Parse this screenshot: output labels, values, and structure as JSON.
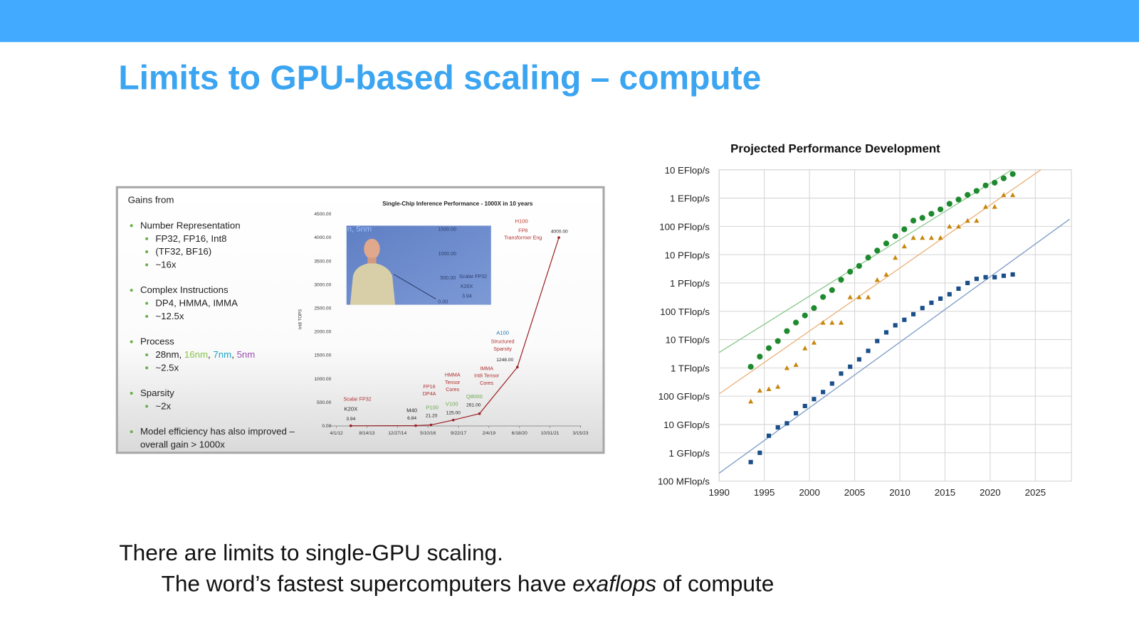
{
  "title": "Limits to GPU-based scaling – compute",
  "left_figure": {
    "heading": "Gains from",
    "bullets": [
      {
        "text": [
          "Number Representation"
        ],
        "subs": [
          {
            "segments": [
              {
                "text": "FP32, FP16, Int8",
                "color": "#222222"
              }
            ]
          },
          {
            "segments": [
              {
                "text": "(TF32, BF16)",
                "color": "#222222"
              }
            ]
          },
          {
            "segments": [
              {
                "text": "~16x",
                "color": "#222222"
              }
            ]
          }
        ]
      },
      {
        "text": [
          "Complex Instructions"
        ],
        "subs": [
          {
            "segments": [
              {
                "text": "DP4, HMMA, IMMA",
                "color": "#222222"
              }
            ]
          },
          {
            "segments": [
              {
                "text": "~12.5x",
                "color": "#222222"
              }
            ]
          }
        ]
      },
      {
        "text": [
          "Process"
        ],
        "subs": [
          {
            "segments": [
              {
                "text": "28nm, ",
                "color": "#222222"
              },
              {
                "text": "16nm",
                "color": "#8bc34a"
              },
              {
                "text": ", ",
                "color": "#222222"
              },
              {
                "text": "7nm",
                "color": "#1aa3c8"
              },
              {
                "text": ", ",
                "color": "#222222"
              },
              {
                "text": "5nm",
                "color": "#9c4fb0"
              }
            ]
          },
          {
            "segments": [
              {
                "text": "~2.5x",
                "color": "#222222"
              }
            ]
          }
        ]
      },
      {
        "text": [
          "Sparsity"
        ],
        "subs": [
          {
            "segments": [
              {
                "text": "~2x",
                "color": "#222222"
              }
            ]
          }
        ]
      },
      {
        "text": [
          "Model efficiency has also improved –",
          "overall gain > 1000x"
        ],
        "subs": []
      }
    ],
    "chart": {
      "type": "line",
      "title": "Single-Chip Inference Performance - 1000X in 10 years",
      "y_label": "Int8 TOPS",
      "color": "#9b2226",
      "xlim": [
        -0.24,
        8.02
      ],
      "ylim": [
        0,
        4500
      ],
      "xticks": [
        {
          "value": 0,
          "label": "4/1/12"
        },
        {
          "value": 1,
          "label": "8/14/13"
        },
        {
          "value": 2,
          "label": "12/27/14"
        },
        {
          "value": 3,
          "label": "5/10/16"
        },
        {
          "value": 4,
          "label": "9/22/17"
        },
        {
          "value": 5,
          "label": "2/4/19"
        },
        {
          "value": 6,
          "label": "6/18/20"
        },
        {
          "value": 7,
          "label": "10/31/21"
        },
        {
          "value": 8,
          "label": "3/15/23"
        }
      ],
      "yticks": [
        {
          "value": 0,
          "label": "0.00"
        },
        {
          "value": 500,
          "label": "500.00"
        },
        {
          "value": 1000,
          "label": "1000.00"
        },
        {
          "value": 1500,
          "label": "1500.00"
        },
        {
          "value": 2000,
          "label": "2000.00"
        },
        {
          "value": 2500,
          "label": "2500.00"
        },
        {
          "value": 3000,
          "label": "3000.00"
        },
        {
          "value": 3500,
          "label": "3500.00"
        },
        {
          "value": 4000,
          "label": "4000.00"
        },
        {
          "value": 4500,
          "label": "4500.00"
        }
      ],
      "points": [
        {
          "gpu": "K20X",
          "gpu_color": "#222222",
          "feature": [
            "Scalar FP32"
          ],
          "x": 0.47,
          "value": 3.94,
          "value_label": "3.94"
        },
        {
          "gpu": "M40",
          "gpu_color": "#222222",
          "feature": [],
          "x": 2.6,
          "value": 6.84,
          "value_label": "6.84"
        },
        {
          "gpu": "P100",
          "gpu_color": "#6aa84f",
          "feature": [
            "FP16",
            "DP4A"
          ],
          "x": 3.1,
          "value": 21.2,
          "value_label": "21.20"
        },
        {
          "gpu": "V100",
          "gpu_color": "#6aa84f",
          "feature": [
            "HMMA",
            "Tensor",
            "Cores"
          ],
          "x": 3.83,
          "value": 125,
          "value_label": "125.00"
        },
        {
          "gpu": "Q8000",
          "gpu_color": "#6aa84f",
          "feature": [
            "IMMA",
            "Int8 Tensor",
            "Cores"
          ],
          "x": 4.69,
          "value": 261,
          "value_label": "261.00"
        },
        {
          "gpu": "A100",
          "gpu_color": "#1f77b4",
          "feature": [
            "Structured",
            "Sparsity"
          ],
          "x": 5.93,
          "value": 1248,
          "value_label": "1248.00"
        },
        {
          "gpu": "H100",
          "gpu_color": "#c0392b",
          "feature": [
            "FP8",
            "Transformer Eng"
          ],
          "x": 7.29,
          "value": 4000,
          "value_label": "4000.00"
        }
      ]
    },
    "inset_texts": [
      "n, 5nm",
      "1500.00",
      "1000.00",
      "500.00",
      "Scalar FP32",
      "K20X",
      "3.94",
      "0.00"
    ]
  },
  "right_chart": {
    "type": "scatter",
    "title": "Projected Performance Development",
    "log_y": true,
    "grid": true,
    "xlim": [
      1990,
      2029
    ],
    "ylim": [
      100000000,
      10000000000000000000
    ],
    "xticks": [
      1990,
      1995,
      2000,
      2005,
      2010,
      2015,
      2020,
      2025
    ],
    "yticks": [
      {
        "value": 100000000,
        "label": "100 MFlop/s"
      },
      {
        "value": 1000000000,
        "label": "1 GFlop/s"
      },
      {
        "value": 10000000000,
        "label": "10 GFlop/s"
      },
      {
        "value": 100000000000,
        "label": "100 GFlop/s"
      },
      {
        "value": 1000000000000,
        "label": "1 TFlop/s"
      },
      {
        "value": 10000000000000,
        "label": "10 TFlop/s"
      },
      {
        "value": 100000000000000,
        "label": "100 TFlop/s"
      },
      {
        "value": 1000000000000000,
        "label": "1 PFlop/s"
      },
      {
        "value": 10000000000000000,
        "label": "10 PFlop/s"
      },
      {
        "value": 100000000000000000,
        "label": "100 PFlop/s"
      },
      {
        "value": 1000000000000000000,
        "label": "1 EFlop/s"
      },
      {
        "value": 10000000000000000000,
        "label": "10 EFlop/s"
      }
    ],
    "x": [
      1993.5,
      1994.5,
      1995.5,
      1996.5,
      1997.5,
      1998.5,
      1999.5,
      2000.5,
      2001.5,
      2002.5,
      2003.5,
      2004.5,
      2005.5,
      2006.5,
      2007.5,
      2008.5,
      2009.5,
      2010.5,
      2011.5,
      2012.5,
      2013.5,
      2014.5,
      2015.5,
      2016.5,
      2017.5,
      2018.5,
      2019.5,
      2020.5,
      2021.5,
      2022.5
    ],
    "series": [
      {
        "color": "#1e8a2e",
        "marker": "circle",
        "trend_color": "#8cc98e",
        "values": [
          1100000000000.0,
          2500000000000.0,
          5000000000000.0,
          8900000000000.0,
          20000000000000.0,
          40000000000000.0,
          71000000000000.0,
          130000000000000.0,
          320000000000000.0,
          560000000000000.0,
          1300000000000000.0,
          2500000000000000.0,
          4000000000000000.0,
          7900000000000000.0,
          1.4e+16,
          2.5e+16,
          4.5e+16,
          7.9e+16,
          1.6e+17,
          2e+17,
          2.8e+17,
          4e+17,
          6.3e+17,
          8.9e+17,
          1.3e+18,
          1.8e+18,
          2.8e+18,
          3.5e+18,
          5e+18,
          7.1e+18
        ],
        "trend": {
          "x": [
            1990,
            2022.4
          ],
          "values": [
            3500000000000.0,
            1e+19
          ]
        }
      },
      {
        "color": "#c8860a",
        "marker": "triangle",
        "trend_color": "#eab27a",
        "values": [
          66000000000.0,
          160000000000.0,
          180000000000.0,
          220000000000.0,
          1000000000000.0,
          1300000000000.0,
          5000000000000.0,
          7900000000000.0,
          40000000000000.0,
          40000000000000.0,
          40000000000000.0,
          320000000000000.0,
          320000000000000.0,
          320000000000000.0,
          1300000000000000.0,
          2000000000000000.0,
          7900000000000000.0,
          2e+16,
          4e+16,
          4e+16,
          4e+16,
          4e+16,
          1e+17,
          1e+17,
          1.6e+17,
          1.6e+17,
          5e+17,
          5e+17,
          1.3e+18,
          1.3e+18
        ],
        "trend": {
          "x": [
            1990,
            2025.6
          ],
          "values": [
            120000000000.0,
            1e+19
          ]
        }
      },
      {
        "color": "#1a4f8a",
        "marker": "square",
        "trend_color": "#7e9cc6",
        "values": [
          470000000.0,
          1000000000.0,
          4000000000.0,
          7900000000.0,
          11000000000.0,
          25000000000.0,
          45000000000.0,
          79000000000.0,
          140000000000.0,
          280000000000.0,
          630000000000.0,
          1100000000000.0,
          2000000000000.0,
          4000000000000.0,
          8900000000000.0,
          18000000000000.0,
          32000000000000.0,
          50000000000000.0,
          79000000000000.0,
          130000000000000.0,
          200000000000000.0,
          280000000000000.0,
          400000000000000.0,
          630000000000000.0,
          1000000000000000.0,
          1400000000000000.0,
          1600000000000000.0,
          1600000000000000.0,
          1800000000000000.0,
          2000000000000000.0
        ],
        "trend": {
          "x": [
            1990,
            2028.8
          ],
          "values": [
            190000000.0,
            1.8e+17
          ]
        }
      }
    ]
  },
  "body": {
    "line1": "There are limits to single-GPU scaling.",
    "line2": [
      {
        "text": "The word’s fastest supercomputers have "
      },
      {
        "text": "exaflops",
        "italic": true
      },
      {
        "text": " of compute"
      }
    ]
  }
}
